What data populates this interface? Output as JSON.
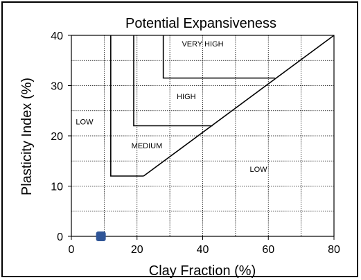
{
  "chart_data": {
    "type": "scatter",
    "title": "Potential Expansiveness",
    "xlabel": "Clay Fraction (%)",
    "ylabel": "Plasticity Index (%)",
    "xlim": [
      0,
      80
    ],
    "ylim": [
      0,
      40
    ],
    "x_ticks": [
      0,
      20,
      40,
      60,
      80
    ],
    "y_ticks": [
      0,
      10,
      20,
      30,
      40
    ],
    "x_minor_grid_step": 10,
    "y_minor_grid_step": 5,
    "grid": true,
    "boundary_line": [
      [
        22,
        12
      ],
      [
        80,
        40
      ]
    ],
    "boundaries": [
      {
        "name": "low-medium",
        "points": [
          [
            22,
            12
          ],
          [
            12,
            12
          ],
          [
            12,
            40
          ]
        ]
      },
      {
        "name": "medium-high",
        "points": [
          [
            19,
            40
          ],
          [
            19,
            22
          ],
          [
            43,
            22
          ]
        ]
      },
      {
        "name": "high-very-high",
        "points": [
          [
            28,
            40
          ],
          [
            28,
            31.5
          ],
          [
            62,
            31.5
          ]
        ]
      }
    ],
    "regions": [
      {
        "label": "VERY HIGH",
        "x": 40,
        "y": 37.8
      },
      {
        "label": "HIGH",
        "x": 35,
        "y": 27.3
      },
      {
        "label": "LOW",
        "x": 4,
        "y": 22.3
      },
      {
        "label": "MEDIUM",
        "x": 23,
        "y": 17.5
      },
      {
        "label": "LOW",
        "x": 57,
        "y": 12.8
      }
    ],
    "points": [
      {
        "x": 9,
        "y": 0
      }
    ],
    "point_color": "#2f5597"
  }
}
